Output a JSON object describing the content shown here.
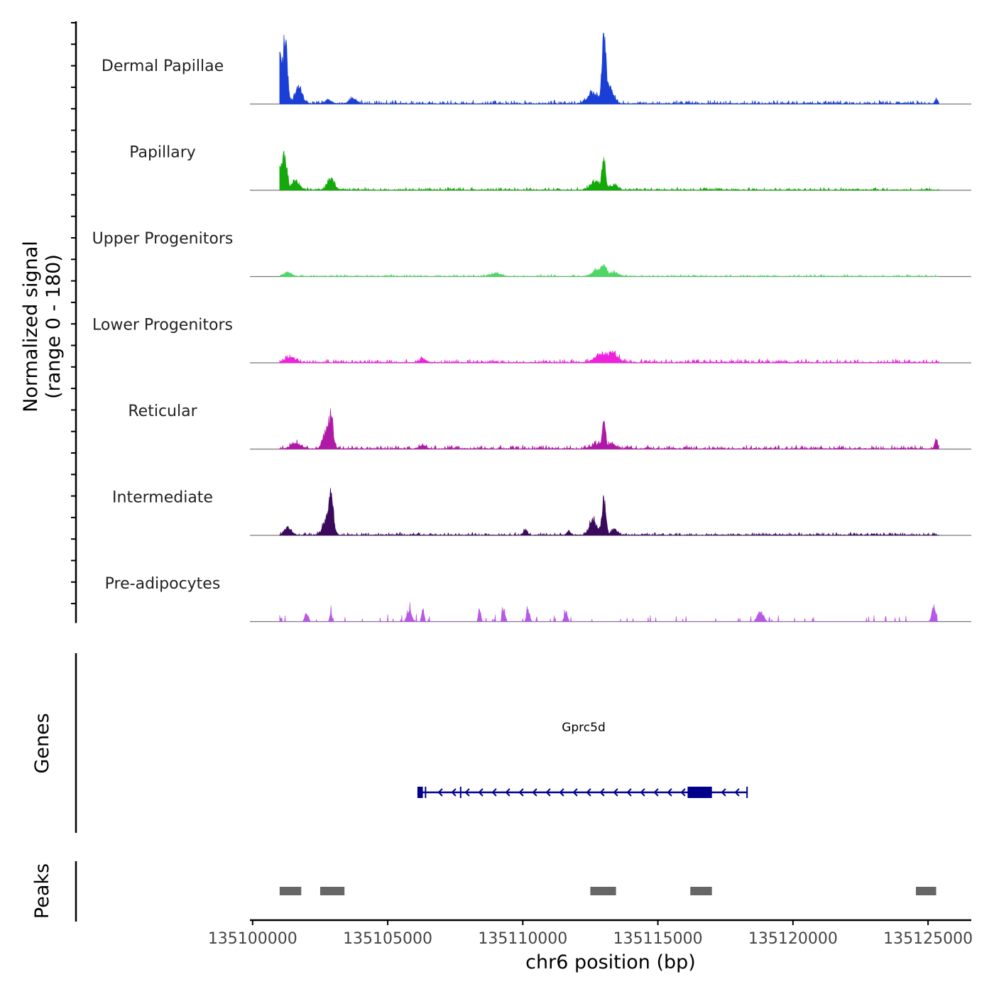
{
  "chart_data": {
    "type": "area",
    "title": "",
    "y_axis_label_line1": "Normalized signal",
    "y_axis_label_line2": "(range 0 - 180)",
    "ylim": [
      0,
      180
    ],
    "x_axis_label": "chr6 position (bp)",
    "xlim": [
      135099900,
      135126600
    ],
    "x_ticks": [
      135100000,
      135105000,
      135110000,
      135115000,
      135120000,
      135125000
    ],
    "x_tick_labels": [
      "135100000",
      "135105000",
      "135110000",
      "135115000",
      "135120000",
      "135125000"
    ],
    "signal_start": 135101000,
    "signal_end": 135125400,
    "tracks": [
      {
        "name": "Dermal Papillae",
        "color": "#1a3fd6",
        "background": 4,
        "peaks": [
          {
            "pos": 135101000,
            "height": 108,
            "width": 80
          },
          {
            "pos": 135101200,
            "height": 160,
            "width": 120
          },
          {
            "pos": 135101700,
            "height": 42,
            "width": 180
          },
          {
            "pos": 135102800,
            "height": 10,
            "width": 150
          },
          {
            "pos": 135103700,
            "height": 12,
            "width": 200
          },
          {
            "pos": 135112600,
            "height": 25,
            "width": 300
          },
          {
            "pos": 135113000,
            "height": 170,
            "width": 90
          },
          {
            "pos": 135113200,
            "height": 40,
            "width": 200
          },
          {
            "pos": 135125300,
            "height": 14,
            "width": 60
          }
        ]
      },
      {
        "name": "Papillary",
        "color": "#15a80a",
        "background": 3,
        "peaks": [
          {
            "pos": 135101000,
            "height": 50,
            "width": 150
          },
          {
            "pos": 135101200,
            "height": 72,
            "width": 110
          },
          {
            "pos": 135101600,
            "height": 22,
            "width": 200
          },
          {
            "pos": 135102900,
            "height": 28,
            "width": 180
          },
          {
            "pos": 135112700,
            "height": 20,
            "width": 260
          },
          {
            "pos": 135113000,
            "height": 72,
            "width": 90
          },
          {
            "pos": 135113400,
            "height": 14,
            "width": 180
          }
        ]
      },
      {
        "name": "Upper Progenitors",
        "color": "#4fd766",
        "background": 2,
        "peaks": [
          {
            "pos": 135101300,
            "height": 10,
            "width": 200
          },
          {
            "pos": 135109000,
            "height": 8,
            "width": 250
          },
          {
            "pos": 135112700,
            "height": 14,
            "width": 200
          },
          {
            "pos": 135113000,
            "height": 26,
            "width": 150
          },
          {
            "pos": 135113400,
            "height": 10,
            "width": 200
          }
        ]
      },
      {
        "name": "Lower Progenitors",
        "color": "#ee22dc",
        "background": 4,
        "peaks": [
          {
            "pos": 135101400,
            "height": 14,
            "width": 250
          },
          {
            "pos": 135106300,
            "height": 10,
            "width": 150
          },
          {
            "pos": 135112800,
            "height": 16,
            "width": 260
          },
          {
            "pos": 135113300,
            "height": 24,
            "width": 300
          }
        ]
      },
      {
        "name": "Reticular",
        "color": "#b018a6",
        "background": 4,
        "peaks": [
          {
            "pos": 135101600,
            "height": 14,
            "width": 250
          },
          {
            "pos": 135102700,
            "height": 40,
            "width": 160
          },
          {
            "pos": 135102900,
            "height": 72,
            "width": 120
          },
          {
            "pos": 135106300,
            "height": 8,
            "width": 150
          },
          {
            "pos": 135112700,
            "height": 10,
            "width": 250
          },
          {
            "pos": 135113000,
            "height": 82,
            "width": 80
          },
          {
            "pos": 135113300,
            "height": 12,
            "width": 200
          },
          {
            "pos": 135125300,
            "height": 22,
            "width": 80
          }
        ]
      },
      {
        "name": "Intermediate",
        "color": "#3b0a5c",
        "background": 3,
        "peaks": [
          {
            "pos": 135101300,
            "height": 18,
            "width": 180
          },
          {
            "pos": 135102700,
            "height": 30,
            "width": 180
          },
          {
            "pos": 135102900,
            "height": 88,
            "width": 130
          },
          {
            "pos": 135110100,
            "height": 14,
            "width": 100
          },
          {
            "pos": 135111700,
            "height": 10,
            "width": 100
          },
          {
            "pos": 135112600,
            "height": 40,
            "width": 180
          },
          {
            "pos": 135113000,
            "height": 86,
            "width": 100
          },
          {
            "pos": 135113400,
            "height": 14,
            "width": 160
          }
        ]
      },
      {
        "name": "Pre-adipocytes",
        "color": "#b758e6",
        "background": 0,
        "spiky": true,
        "peaks": [
          {
            "pos": 135101000,
            "height": 14,
            "width": 60
          },
          {
            "pos": 135102000,
            "height": 22,
            "width": 90
          },
          {
            "pos": 135102900,
            "height": 20,
            "width": 60
          },
          {
            "pos": 135105800,
            "height": 28,
            "width": 120
          },
          {
            "pos": 135106300,
            "height": 38,
            "width": 60
          },
          {
            "pos": 135108400,
            "height": 30,
            "width": 60
          },
          {
            "pos": 135109300,
            "height": 28,
            "width": 80
          },
          {
            "pos": 135110200,
            "height": 30,
            "width": 80
          },
          {
            "pos": 135111600,
            "height": 26,
            "width": 80
          },
          {
            "pos": 135118800,
            "height": 26,
            "width": 150
          },
          {
            "pos": 135125200,
            "height": 40,
            "width": 90
          }
        ]
      }
    ],
    "gene_panel": {
      "y_label": "Genes",
      "gene_name": "Gprc5d",
      "strand": "-",
      "color": "#00008b",
      "start": 135106100,
      "end": 135118300,
      "exons": [
        {
          "start": 135106100,
          "end": 135106300
        },
        {
          "start": 135116100,
          "end": 135117000
        }
      ],
      "small_exon_marks": [
        135106400,
        135107700,
        135118300
      ]
    },
    "peaks_panel": {
      "y_label": "Peaks",
      "color": "#666666",
      "regions": [
        {
          "start": 135101000,
          "end": 135101800
        },
        {
          "start": 135102500,
          "end": 135103400
        },
        {
          "start": 135112500,
          "end": 135113450
        },
        {
          "start": 135116200,
          "end": 135117000
        },
        {
          "start": 135124550,
          "end": 135125300
        }
      ]
    }
  }
}
